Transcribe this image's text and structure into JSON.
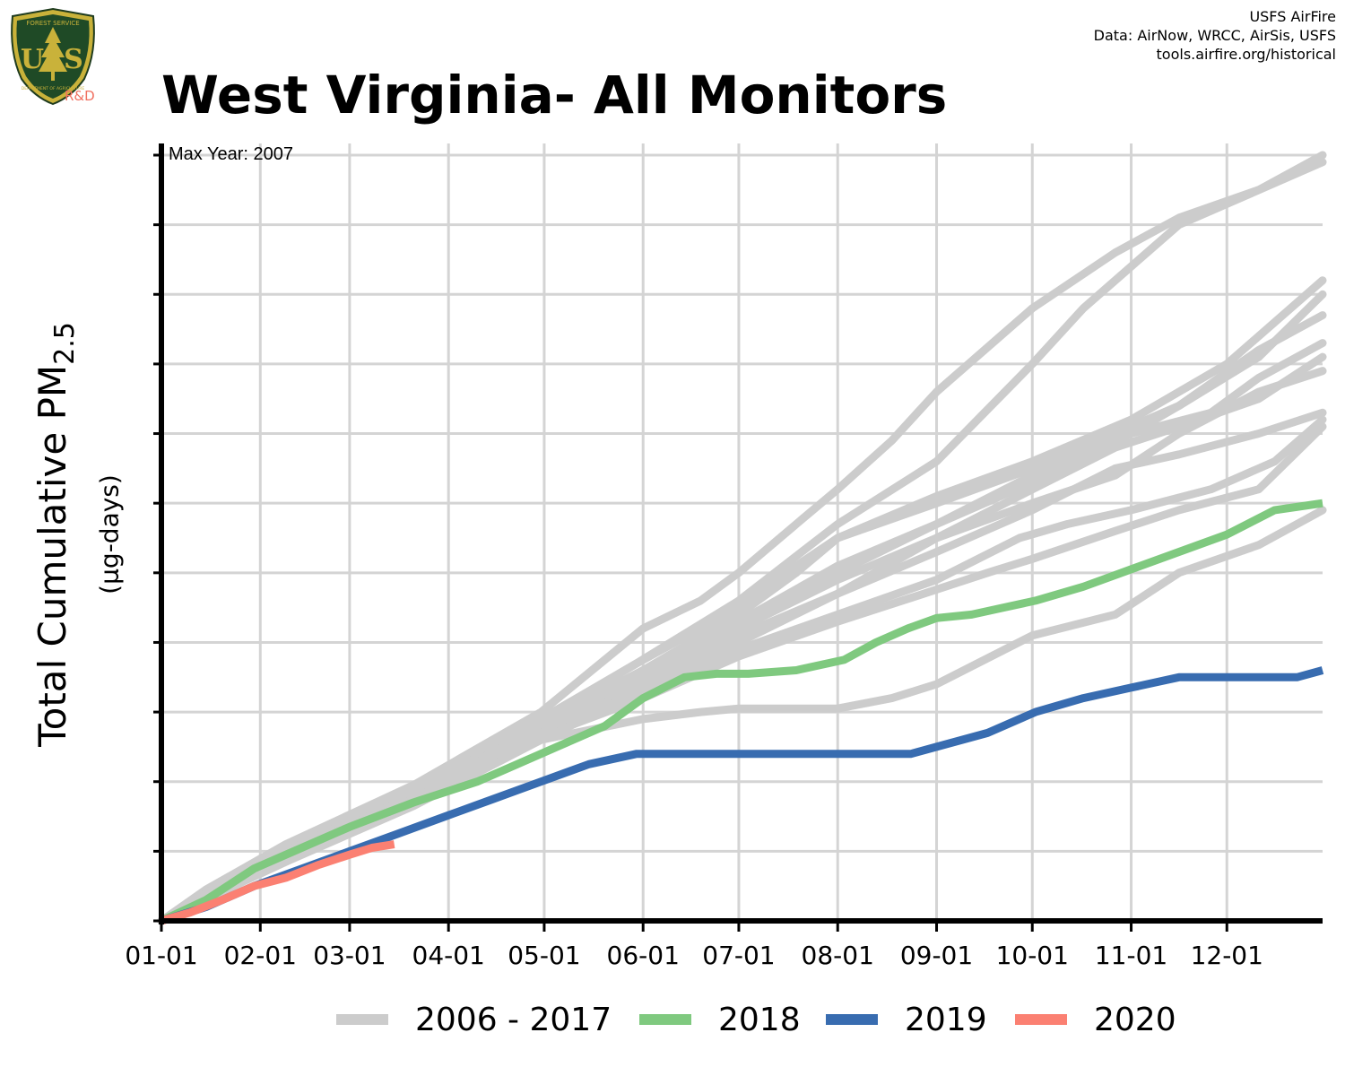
{
  "logo": {
    "brand_top": "FOREST SERVICE",
    "brand_letters": "US",
    "brand_bottom": "DEPARTMENT OF AGRICULTURE",
    "rd_text": "R&D"
  },
  "credits": {
    "line1": "USFS AirFire",
    "line2": "Data: AirNow, WRCC, AirSis, USFS",
    "line3": "tools.airfire.org/historical"
  },
  "colors": {
    "history": "#cccccc",
    "y2018": "#7fc97f",
    "y2019": "#386cb0",
    "y2020": "#fb8072",
    "grid": "#d4d4d4",
    "rd": "#f07060"
  },
  "chart_data": {
    "type": "line",
    "title": "West Virginia- All Monitors",
    "ylabel_main": "Total Cumulative PM",
    "ylabel_sub": "2.5",
    "ylabel_units": "(µg-days)",
    "annotation": "Max Year: 2007",
    "x_domain_days": [
      1,
      365
    ],
    "y_domain": [
      0,
      110
    ],
    "xticks": [
      {
        "day": 1,
        "label": "01-01"
      },
      {
        "day": 32,
        "label": "02-01"
      },
      {
        "day": 60,
        "label": "03-01"
      },
      {
        "day": 91,
        "label": "04-01"
      },
      {
        "day": 121,
        "label": "05-01"
      },
      {
        "day": 152,
        "label": "06-01"
      },
      {
        "day": 182,
        "label": "07-01"
      },
      {
        "day": 213,
        "label": "08-01"
      },
      {
        "day": 244,
        "label": "09-01"
      },
      {
        "day": 274,
        "label": "10-01"
      },
      {
        "day": 305,
        "label": "11-01"
      },
      {
        "day": 335,
        "label": "12-01"
      }
    ],
    "y_gridlines": [
      0,
      10,
      20,
      30,
      40,
      50,
      60,
      70,
      80,
      90,
      100,
      110
    ],
    "legend": [
      {
        "label": "2006 - 2017",
        "color": "#cccccc"
      },
      {
        "label": "2018",
        "color": "#7fc97f"
      },
      {
        "label": "2019",
        "color": "#386cb0"
      },
      {
        "label": "2020",
        "color": "#fb8072"
      }
    ],
    "history_series": [
      [
        [
          1,
          0
        ],
        [
          15,
          4.5
        ],
        [
          40,
          11
        ],
        [
          80,
          19.5
        ],
        [
          120,
          30
        ],
        [
          152,
          42
        ],
        [
          170,
          46
        ],
        [
          182,
          50
        ],
        [
          200,
          57
        ],
        [
          213,
          62
        ],
        [
          230,
          69
        ],
        [
          244,
          76
        ],
        [
          274,
          88
        ],
        [
          300,
          96
        ],
        [
          320,
          101
        ],
        [
          345,
          105
        ],
        [
          365,
          110
        ]
      ],
      [
        [
          1,
          0
        ],
        [
          15,
          4.2
        ],
        [
          40,
          10.5
        ],
        [
          80,
          19
        ],
        [
          120,
          29
        ],
        [
          150,
          37
        ],
        [
          182,
          46
        ],
        [
          213,
          57
        ],
        [
          244,
          66
        ],
        [
          274,
          80
        ],
        [
          290,
          88
        ],
        [
          305,
          94
        ],
        [
          320,
          100
        ],
        [
          340,
          104
        ],
        [
          365,
          109
        ]
      ],
      [
        [
          1,
          0
        ],
        [
          15,
          4
        ],
        [
          40,
          10
        ],
        [
          80,
          18.5
        ],
        [
          120,
          29
        ],
        [
          152,
          37.5
        ],
        [
          182,
          45
        ],
        [
          200,
          51
        ],
        [
          213,
          55
        ],
        [
          244,
          61
        ],
        [
          274,
          66
        ],
        [
          305,
          72
        ],
        [
          335,
          80
        ],
        [
          365,
          92
        ]
      ],
      [
        [
          1,
          0
        ],
        [
          15,
          4
        ],
        [
          40,
          10
        ],
        [
          80,
          18.5
        ],
        [
          120,
          28.5
        ],
        [
          152,
          36
        ],
        [
          182,
          44
        ],
        [
          200,
          50
        ],
        [
          213,
          55
        ],
        [
          244,
          60
        ],
        [
          274,
          65
        ],
        [
          300,
          70
        ],
        [
          320,
          74
        ],
        [
          345,
          81
        ],
        [
          365,
          90
        ]
      ],
      [
        [
          1,
          0
        ],
        [
          15,
          4
        ],
        [
          40,
          10
        ],
        [
          80,
          18
        ],
        [
          120,
          28
        ],
        [
          152,
          36
        ],
        [
          182,
          43
        ],
        [
          213,
          51
        ],
        [
          244,
          57
        ],
        [
          274,
          64
        ],
        [
          290,
          67
        ],
        [
          305,
          70
        ],
        [
          320,
          74
        ],
        [
          345,
          82
        ],
        [
          365,
          87
        ]
      ],
      [
        [
          1,
          0
        ],
        [
          15,
          3.8
        ],
        [
          40,
          9.5
        ],
        [
          80,
          18
        ],
        [
          120,
          28
        ],
        [
          152,
          35
        ],
        [
          182,
          43
        ],
        [
          213,
          50
        ],
        [
          244,
          57
        ],
        [
          274,
          63
        ],
        [
          305,
          70
        ],
        [
          330,
          73
        ],
        [
          345,
          78
        ],
        [
          365,
          83
        ]
      ],
      [
        [
          1,
          0
        ],
        [
          15,
          3.8
        ],
        [
          40,
          9.5
        ],
        [
          80,
          18
        ],
        [
          120,
          27.5
        ],
        [
          152,
          35
        ],
        [
          182,
          42
        ],
        [
          213,
          49
        ],
        [
          244,
          55
        ],
        [
          274,
          62
        ],
        [
          300,
          68
        ],
        [
          320,
          71
        ],
        [
          345,
          75
        ],
        [
          365,
          81
        ]
      ],
      [
        [
          1,
          0
        ],
        [
          15,
          3.5
        ],
        [
          40,
          9
        ],
        [
          80,
          17.5
        ],
        [
          120,
          27
        ],
        [
          152,
          34
        ],
        [
          182,
          41
        ],
        [
          213,
          47
        ],
        [
          244,
          53
        ],
        [
          274,
          59
        ],
        [
          300,
          65
        ],
        [
          320,
          67
        ],
        [
          345,
          70
        ],
        [
          365,
          73
        ]
      ],
      [
        [
          1,
          0
        ],
        [
          15,
          3.5
        ],
        [
          40,
          9
        ],
        [
          80,
          17.5
        ],
        [
          120,
          27
        ],
        [
          152,
          33
        ],
        [
          182,
          39
        ],
        [
          213,
          44
        ],
        [
          244,
          49
        ],
        [
          270,
          55
        ],
        [
          285,
          57
        ],
        [
          305,
          59
        ],
        [
          330,
          62
        ],
        [
          350,
          66
        ],
        [
          365,
          72
        ]
      ],
      [
        [
          1,
          0
        ],
        [
          15,
          3.5
        ],
        [
          40,
          9
        ],
        [
          80,
          17
        ],
        [
          120,
          26.5
        ],
        [
          152,
          32
        ],
        [
          182,
          38
        ],
        [
          213,
          43
        ],
        [
          240,
          47
        ],
        [
          260,
          50
        ],
        [
          274,
          52
        ],
        [
          300,
          56
        ],
        [
          320,
          59
        ],
        [
          345,
          62
        ],
        [
          365,
          71
        ]
      ],
      [
        [
          1,
          0
        ],
        [
          15,
          3.2
        ],
        [
          40,
          8.5
        ],
        [
          80,
          17
        ],
        [
          120,
          26
        ],
        [
          152,
          29
        ],
        [
          170,
          30
        ],
        [
          182,
          30.5
        ],
        [
          213,
          30.5
        ],
        [
          230,
          32
        ],
        [
          244,
          34
        ],
        [
          274,
          41
        ],
        [
          300,
          44
        ],
        [
          320,
          50
        ],
        [
          345,
          54
        ],
        [
          365,
          59
        ]
      ],
      [
        [
          1,
          0
        ],
        [
          15,
          3.2
        ],
        [
          40,
          8.5
        ],
        [
          80,
          16.5
        ],
        [
          120,
          26
        ],
        [
          152,
          33
        ],
        [
          182,
          40
        ],
        [
          213,
          47
        ],
        [
          244,
          55
        ],
        [
          274,
          60
        ],
        [
          300,
          64
        ],
        [
          320,
          70
        ],
        [
          345,
          76
        ],
        [
          365,
          79
        ]
      ]
    ],
    "series": [
      {
        "name": "2018",
        "color": "#7fc97f",
        "points": [
          [
            1,
            0
          ],
          [
            15,
            3
          ],
          [
            30,
            7.5
          ],
          [
            45,
            10.5
          ],
          [
            60,
            13.5
          ],
          [
            80,
            17
          ],
          [
            100,
            20
          ],
          [
            110,
            22
          ],
          [
            125,
            25
          ],
          [
            140,
            28
          ],
          [
            152,
            32
          ],
          [
            165,
            35
          ],
          [
            175,
            35.5
          ],
          [
            185,
            35.5
          ],
          [
            200,
            36
          ],
          [
            215,
            37.5
          ],
          [
            225,
            40
          ],
          [
            235,
            42
          ],
          [
            244,
            43.5
          ],
          [
            255,
            44
          ],
          [
            265,
            45
          ],
          [
            275,
            46
          ],
          [
            290,
            48
          ],
          [
            305,
            50.5
          ],
          [
            320,
            53
          ],
          [
            335,
            55.5
          ],
          [
            350,
            59
          ],
          [
            365,
            60
          ]
        ]
      },
      {
        "name": "2019",
        "color": "#386cb0",
        "points": [
          [
            1,
            0
          ],
          [
            15,
            2
          ],
          [
            30,
            5
          ],
          [
            45,
            7.5
          ],
          [
            60,
            10
          ],
          [
            75,
            12.5
          ],
          [
            90,
            15
          ],
          [
            105,
            17.5
          ],
          [
            120,
            20
          ],
          [
            135,
            22.5
          ],
          [
            150,
            24
          ],
          [
            152,
            24
          ],
          [
            165,
            24
          ],
          [
            182,
            24
          ],
          [
            200,
            24
          ],
          [
            214,
            24
          ],
          [
            236,
            24
          ],
          [
            244,
            25
          ],
          [
            260,
            27
          ],
          [
            275,
            30
          ],
          [
            290,
            32
          ],
          [
            305,
            33.5
          ],
          [
            320,
            35
          ],
          [
            340,
            35
          ],
          [
            357,
            35
          ],
          [
            365,
            36
          ]
        ]
      },
      {
        "name": "2020",
        "color": "#fb8072",
        "points": [
          [
            1,
            0
          ],
          [
            10,
            1.2
          ],
          [
            20,
            3
          ],
          [
            30,
            5
          ],
          [
            40,
            6.2
          ],
          [
            50,
            8
          ],
          [
            60,
            9.5
          ],
          [
            67,
            10.5
          ],
          [
            74,
            11
          ]
        ]
      }
    ]
  }
}
